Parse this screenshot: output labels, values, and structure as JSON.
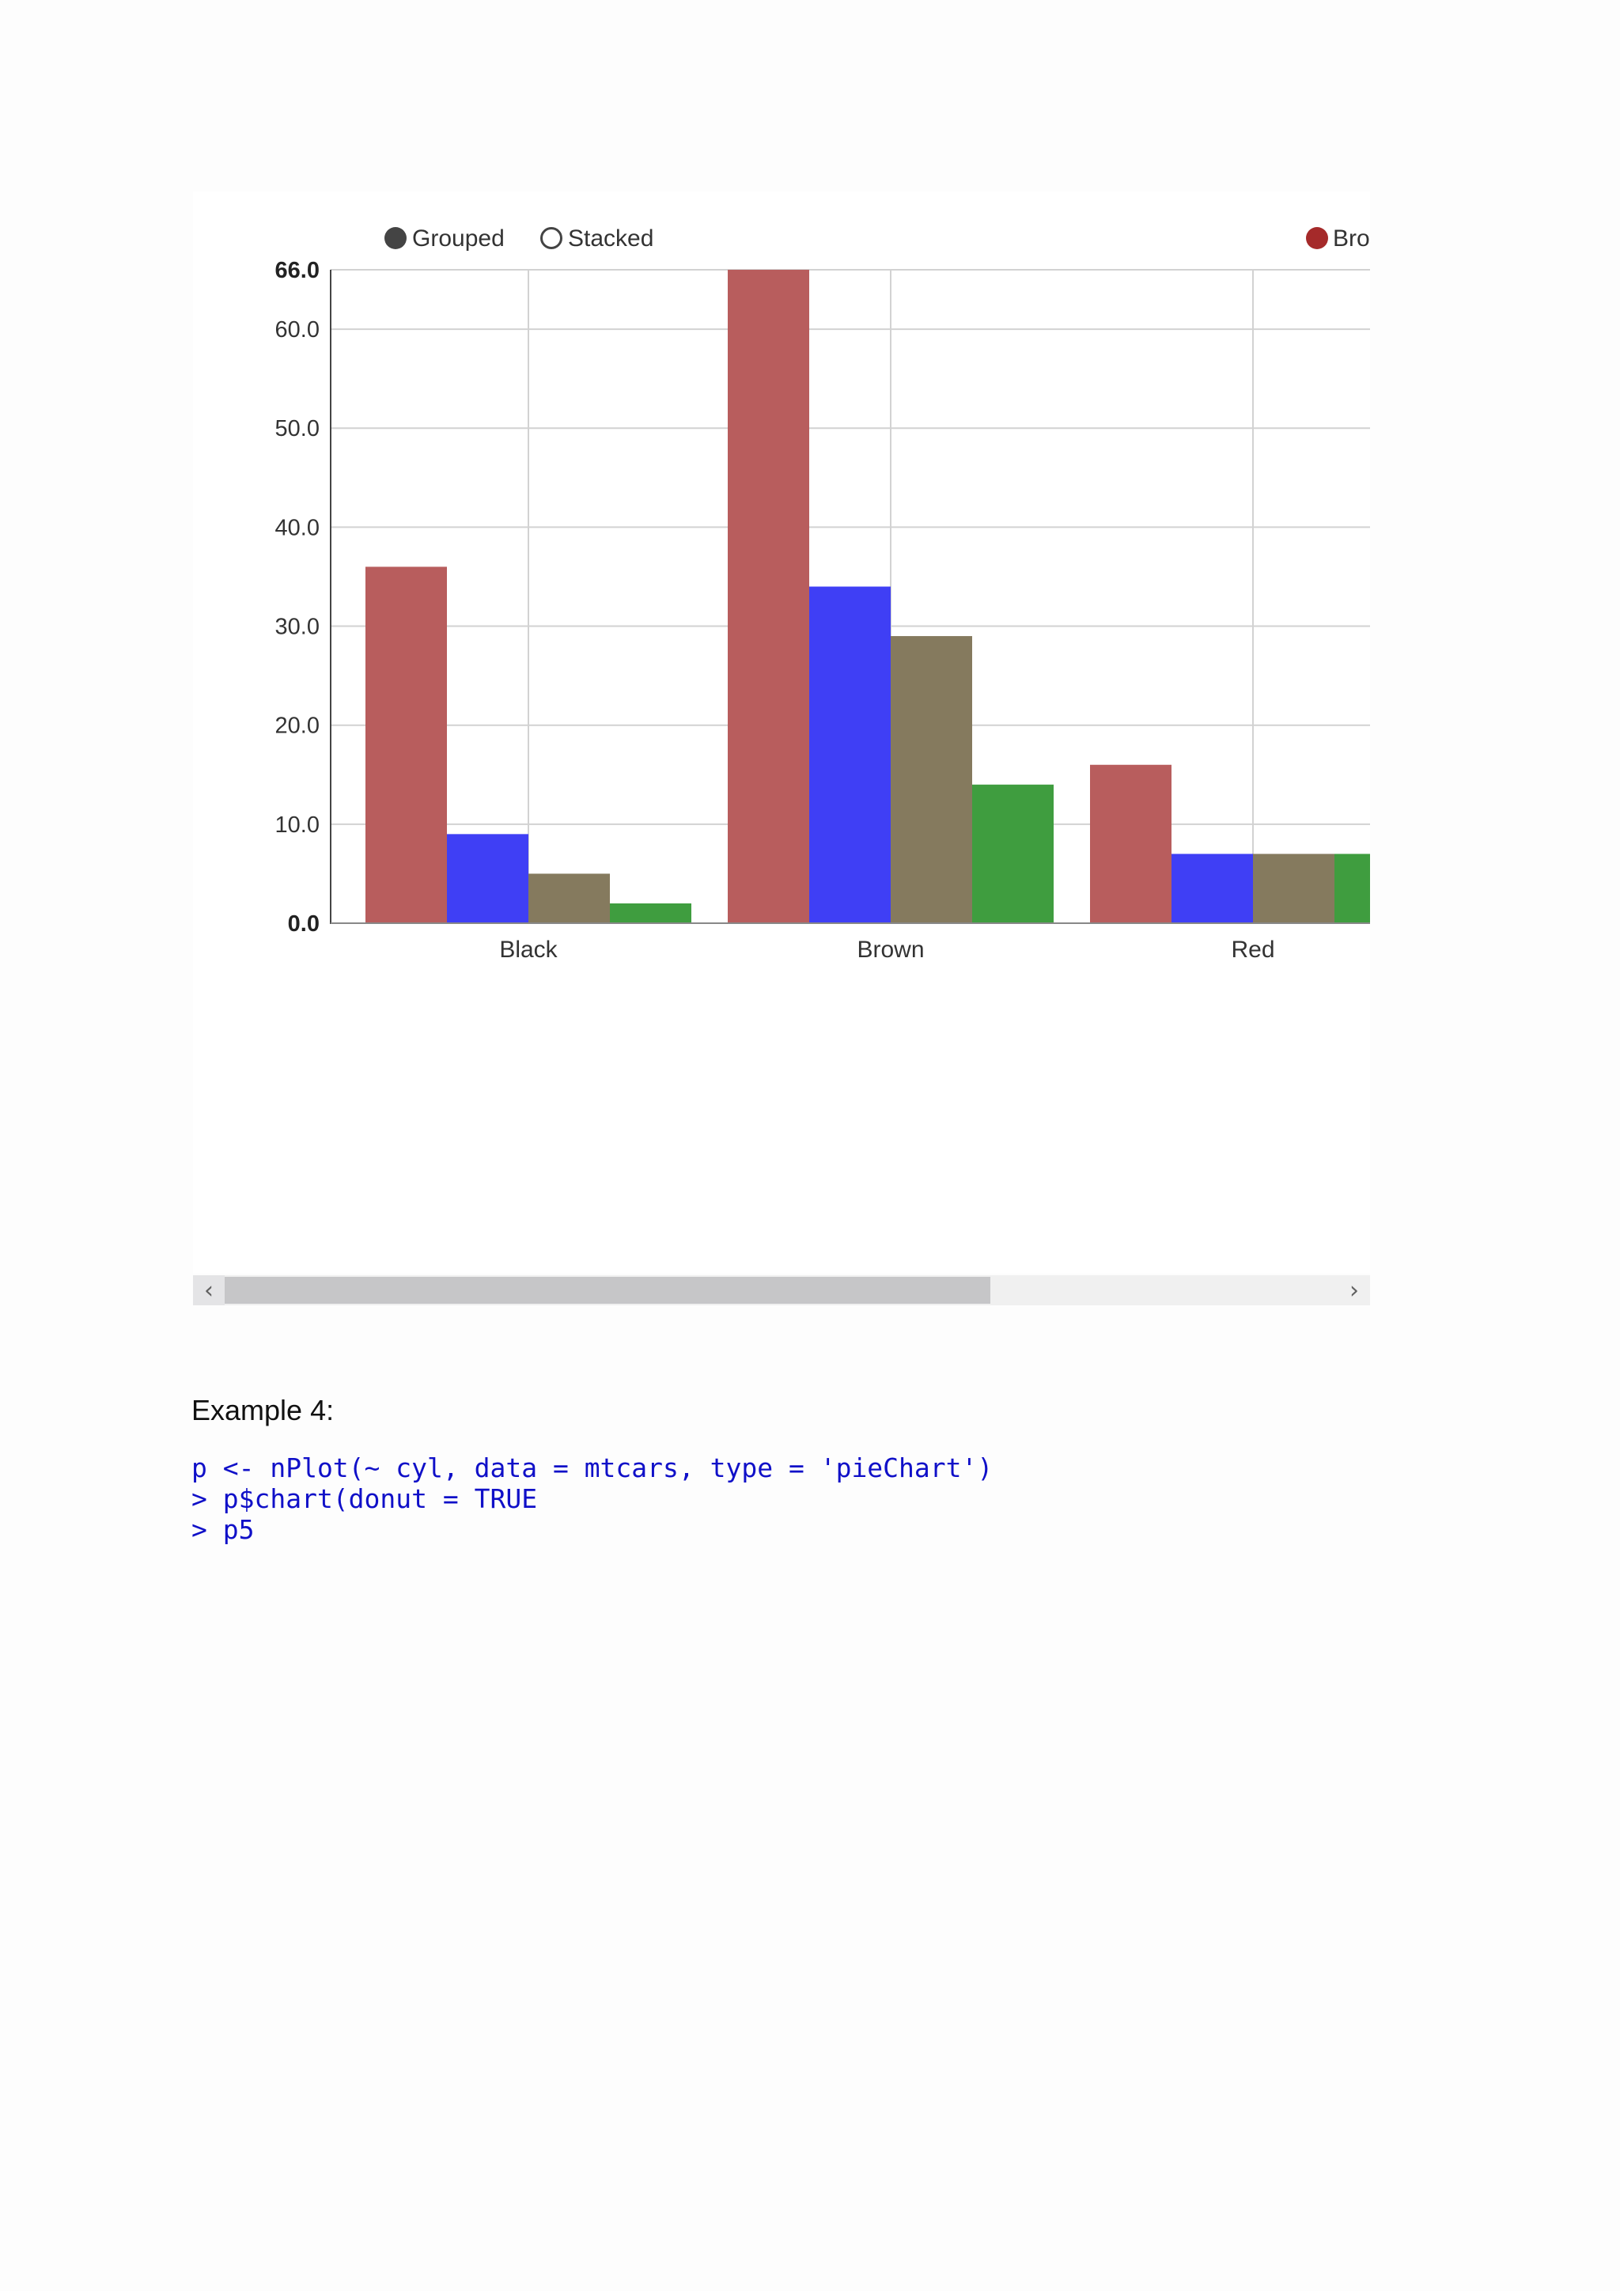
{
  "chart_data": {
    "type": "bar",
    "categories": [
      "Black",
      "Brown",
      "Red"
    ],
    "series": [
      {
        "name": "Brown",
        "color": "#b85d5d",
        "values": [
          36,
          66,
          16
        ]
      },
      {
        "color": "#3f3ff5",
        "values": [
          9,
          34,
          7
        ]
      },
      {
        "color": "#857a5e",
        "values": [
          5,
          29,
          7
        ]
      },
      {
        "color": "#3f9d3f",
        "values": [
          2,
          14,
          7
        ]
      }
    ],
    "ylim": [
      0,
      66
    ],
    "yticks": [
      "0.0",
      "10.0",
      "20.0",
      "30.0",
      "40.0",
      "50.0",
      "60.0",
      "66.0"
    ],
    "grid": true,
    "controls": {
      "options": [
        "Grouped",
        "Stacked"
      ],
      "selected": "Grouped"
    },
    "legend": {
      "placement": "top-right",
      "visible_text": "Bro",
      "marker_color": "#a52a2a"
    }
  },
  "scrollbar": {
    "left_arrow": "‹",
    "right_arrow": "›",
    "position": 0
  },
  "example": {
    "label": "Example 4:",
    "code_lines": [
      "p <- nPlot(~ cyl, data = mtcars, type = 'pieChart')",
      "> p$chart(donut = TRUE",
      "> p5"
    ]
  }
}
